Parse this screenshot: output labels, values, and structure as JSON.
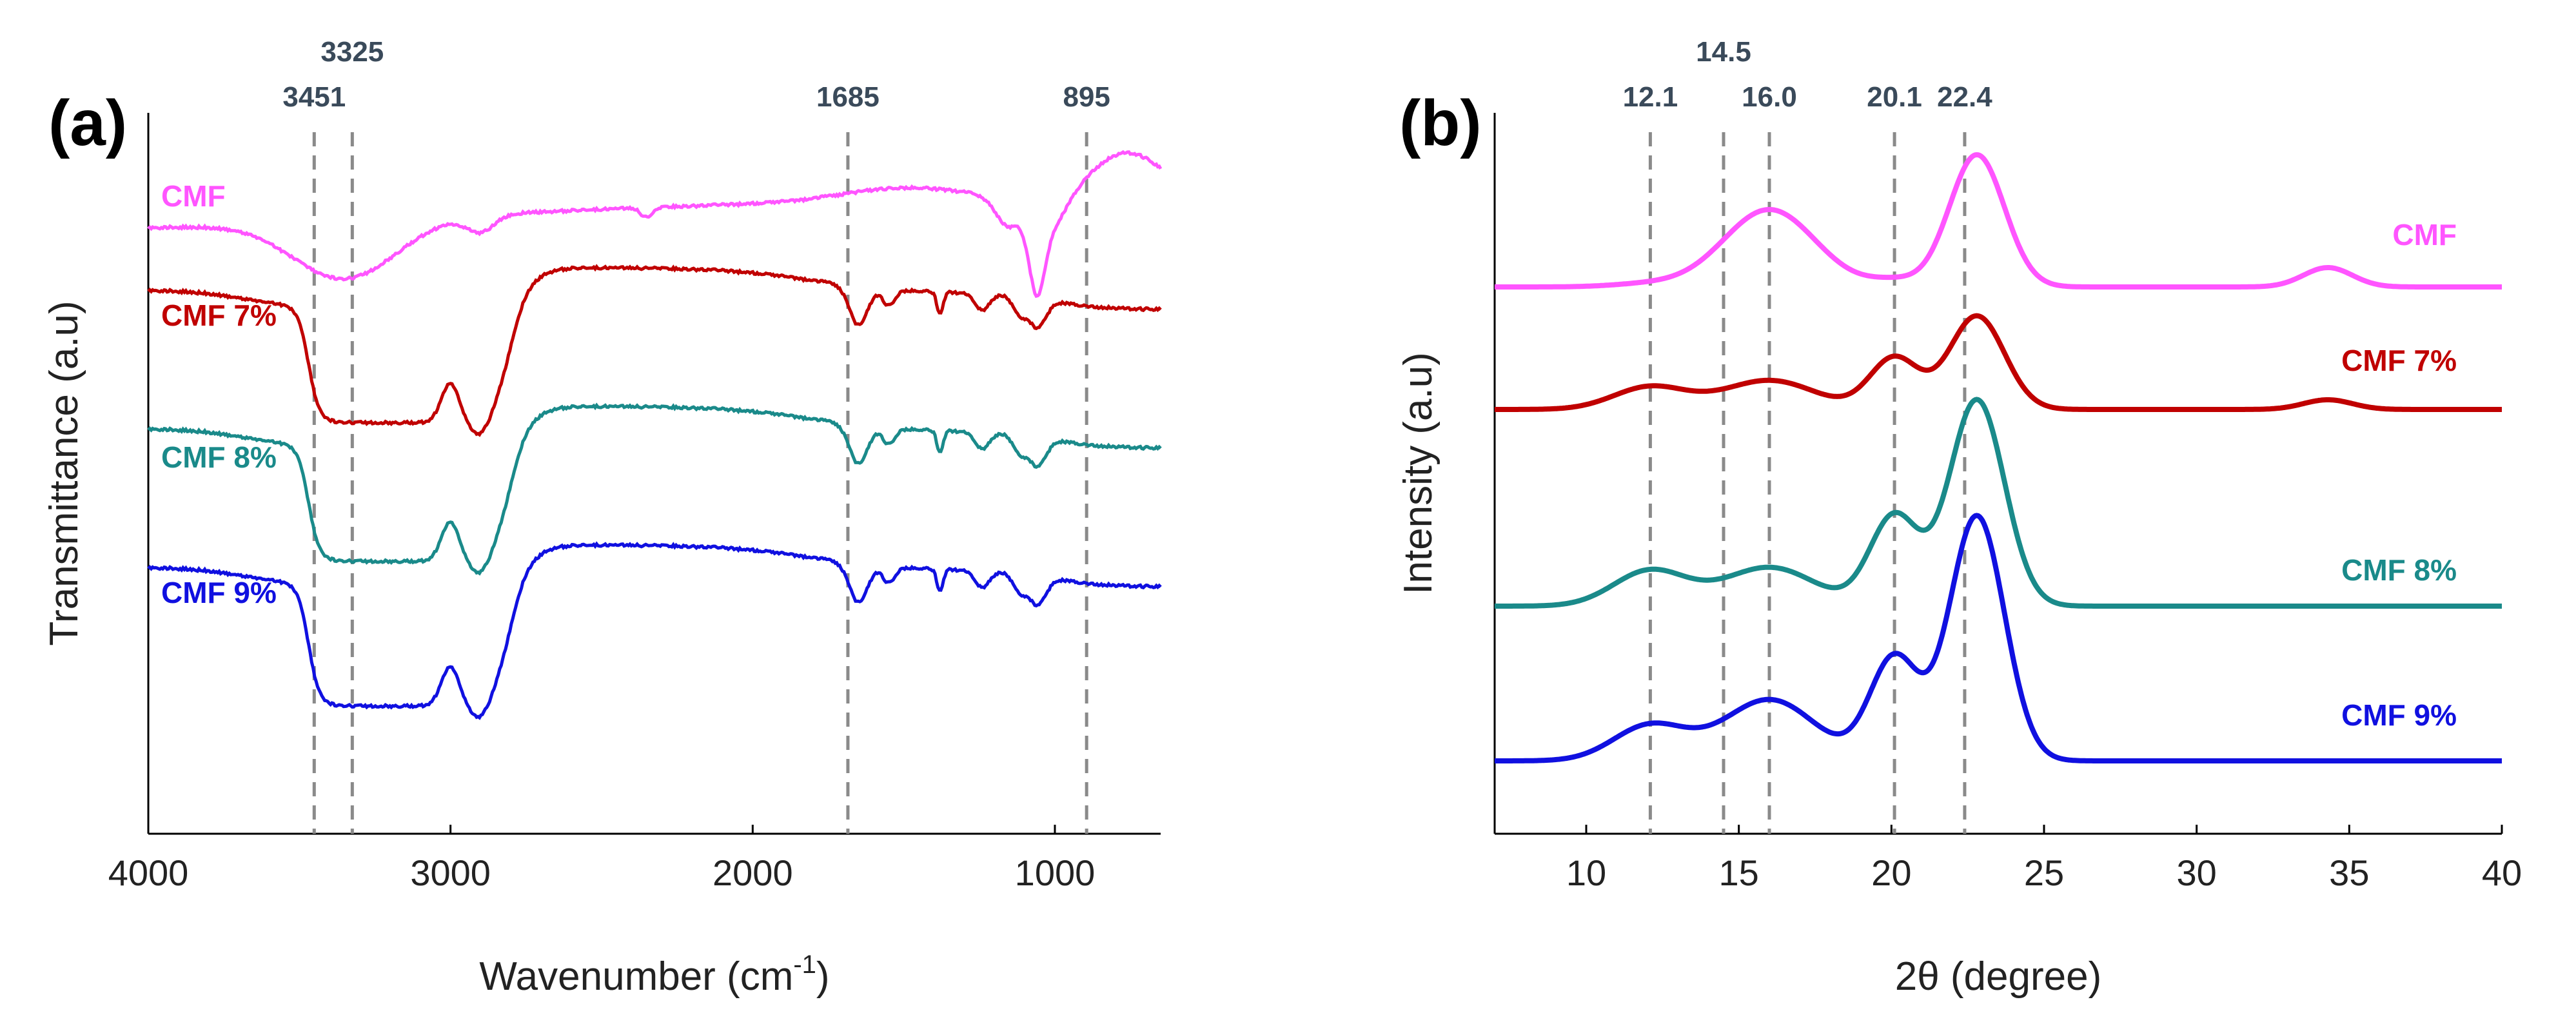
{
  "chart_data": [
    {
      "panel": "(a)",
      "type": "line",
      "xlabel": "Wavenumber (cm",
      "xlabel_sup": "-1",
      "xlabel_end": ")",
      "ylabel": "Transmittance (a.u)",
      "xlim": [
        4000,
        650
      ],
      "x_reversed": true,
      "x_ticks": [
        4000,
        3000,
        2000,
        1000
      ],
      "y_ticks": [],
      "reference_lines": [
        3451,
        3325,
        1685,
        895
      ],
      "peak_labels": [
        {
          "text": "3451",
          "x": 3451
        },
        {
          "text": "3325",
          "x": 3325
        },
        {
          "text": "1685",
          "x": 1685
        },
        {
          "text": "895",
          "x": 895
        }
      ],
      "series": [
        {
          "name": "CMF",
          "color": "#ff55ff"
        },
        {
          "name": "CMF 7%",
          "color": "#c00000"
        },
        {
          "name": "CMF 8%",
          "color": "#1a8a8a"
        },
        {
          "name": "CMF 9%",
          "color": "#1010e0"
        }
      ]
    },
    {
      "panel": "(b)",
      "type": "line",
      "xlabel": "2θ (degree)",
      "ylabel": "Intensity (a.u)",
      "xlim": [
        7,
        40
      ],
      "x_ticks": [
        10,
        15,
        20,
        25,
        30,
        35,
        40
      ],
      "y_ticks": [],
      "reference_lines": [
        12.1,
        14.5,
        16.0,
        20.1,
        22.4
      ],
      "peak_labels": [
        {
          "text": "12.1",
          "x": 12.1
        },
        {
          "text": "14.5",
          "x": 14.5
        },
        {
          "text": "16.0",
          "x": 16.0
        },
        {
          "text": "20.1",
          "x": 20.1
        },
        {
          "text": "22.4",
          "x": 22.4
        }
      ],
      "series": [
        {
          "name": "CMF",
          "color": "#ff55ff"
        },
        {
          "name": "CMF 7%",
          "color": "#c00000"
        },
        {
          "name": "CMF 8%",
          "color": "#1a8a8a"
        },
        {
          "name": "CMF 9%",
          "color": "#1010e0"
        }
      ]
    }
  ]
}
